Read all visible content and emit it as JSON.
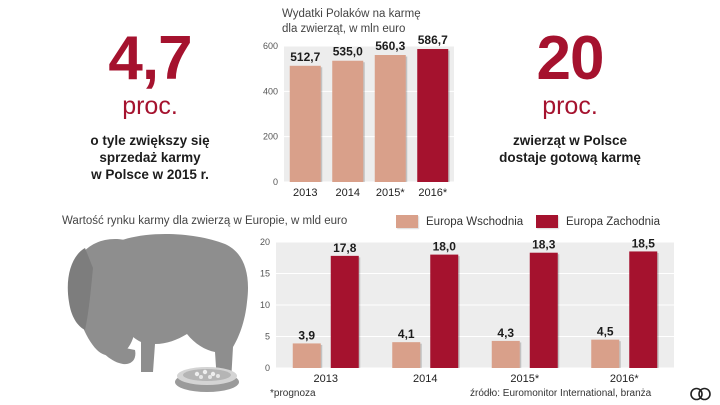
{
  "left_stat": {
    "value": "4,7",
    "unit": "proc.",
    "lines": [
      "o tyle zwiększy się",
      "sprzedaż karmy",
      "w Polsce w 2015 r."
    ]
  },
  "right_stat": {
    "value": "20",
    "unit": "proc.",
    "lines": [
      "zwierząt w Polsce",
      "dostaje gotową karmę"
    ]
  },
  "top_chart_title": [
    "Wydatki Polaków na karmę",
    "dla zwierząt, w mln euro"
  ],
  "bottom_chart_title": "Wartość rynku karmy dla zwierzą w Europie, w mld euro",
  "legend": [
    {
      "label": "Europa Wschodnia",
      "color": "#d9a08a"
    },
    {
      "label": "Europa Zachodnia",
      "color": "#a5122e"
    }
  ],
  "footnote": "*prognoza",
  "source": "źródło: Euromonitor International, branża",
  "colors": {
    "accent": "#a5122e",
    "light": "#d9a08a",
    "panel": "#ededed",
    "dog": "#8e8e8e"
  },
  "chart_data": [
    {
      "type": "bar",
      "title": "Wydatki Polaków na karmę dla zwierząt, w mln euro",
      "categories": [
        "2013",
        "2014",
        "2015*",
        "2016*"
      ],
      "values": [
        512.7,
        535.0,
        560.3,
        586.7
      ],
      "value_labels": [
        "512,7",
        "535,0",
        "560,3",
        "586,7"
      ],
      "bar_colors": [
        "#d9a08a",
        "#d9a08a",
        "#d9a08a",
        "#a5122e"
      ],
      "ylim": [
        0,
        600
      ],
      "yticks": [
        0,
        200,
        400,
        600
      ],
      "grid": true
    },
    {
      "type": "bar",
      "title": "Wartość rynku karmy dla zwierzą w Europie, w mld euro",
      "categories": [
        "2013",
        "2014",
        "2015*",
        "2016*"
      ],
      "series": [
        {
          "name": "Europa Wschodnia",
          "values": [
            3.9,
            4.1,
            4.3,
            4.5
          ],
          "labels": [
            "3,9",
            "4,1",
            "4,3",
            "4,5"
          ],
          "color": "#d9a08a"
        },
        {
          "name": "Europa Zachodnia",
          "values": [
            17.8,
            18.0,
            18.3,
            18.5
          ],
          "labels": [
            "17,8",
            "18,0",
            "18,3",
            "18,5"
          ],
          "color": "#a5122e"
        }
      ],
      "ylim": [
        0,
        20
      ],
      "yticks": [
        0,
        5,
        10,
        15,
        20
      ],
      "grid": true,
      "legend_position": "top-right"
    }
  ]
}
